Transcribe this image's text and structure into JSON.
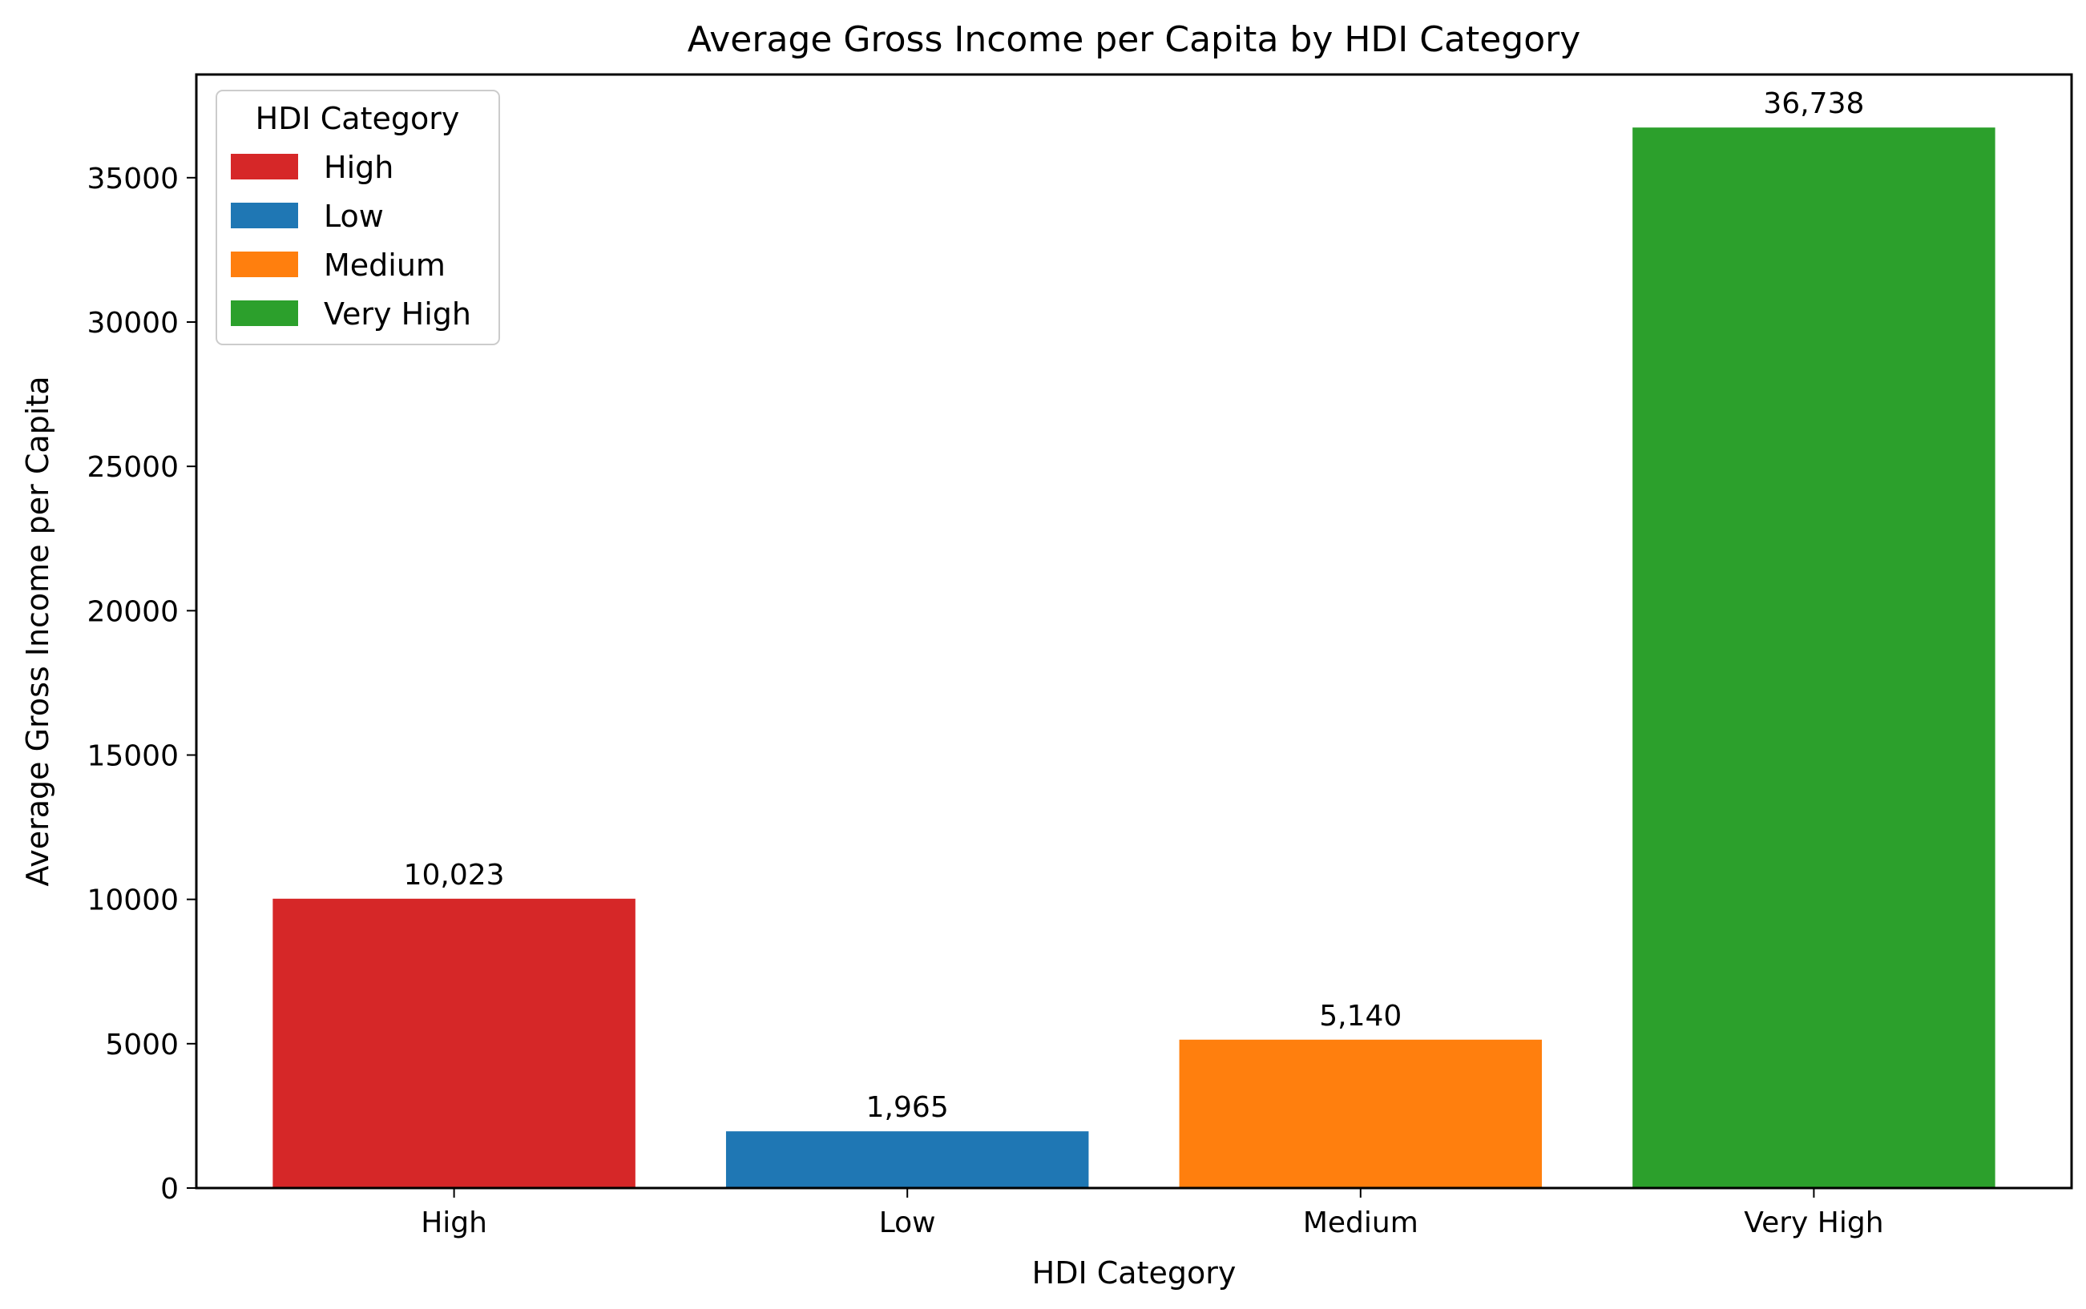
{
  "chart_data": {
    "type": "bar",
    "title": "Average Gross Income per Capita by HDI Category",
    "xlabel": "HDI Category",
    "ylabel": "Average Gross Income per Capita",
    "categories": [
      "High",
      "Low",
      "Medium",
      "Very High"
    ],
    "values": [
      10023,
      1965,
      5140,
      36738
    ],
    "data_labels": [
      "10,023",
      "1,965",
      "5,140",
      "36,738"
    ],
    "colors": [
      "#d62728",
      "#1f77b4",
      "#ff7f0e",
      "#2ca02c"
    ],
    "ylim": [
      0,
      38575
    ],
    "yticks": [
      0,
      5000,
      10000,
      15000,
      20000,
      25000,
      30000,
      35000
    ],
    "ytick_labels": [
      "0",
      "5000",
      "10000",
      "15000",
      "20000",
      "25000",
      "30000",
      "35000"
    ],
    "grid": false,
    "legend": {
      "title": "HDI Category",
      "placement": "upper-left",
      "entries": [
        {
          "label": "High",
          "color": "#d62728"
        },
        {
          "label": "Low",
          "color": "#1f77b4"
        },
        {
          "label": "Medium",
          "color": "#ff7f0e"
        },
        {
          "label": "Very High",
          "color": "#2ca02c"
        }
      ]
    }
  }
}
